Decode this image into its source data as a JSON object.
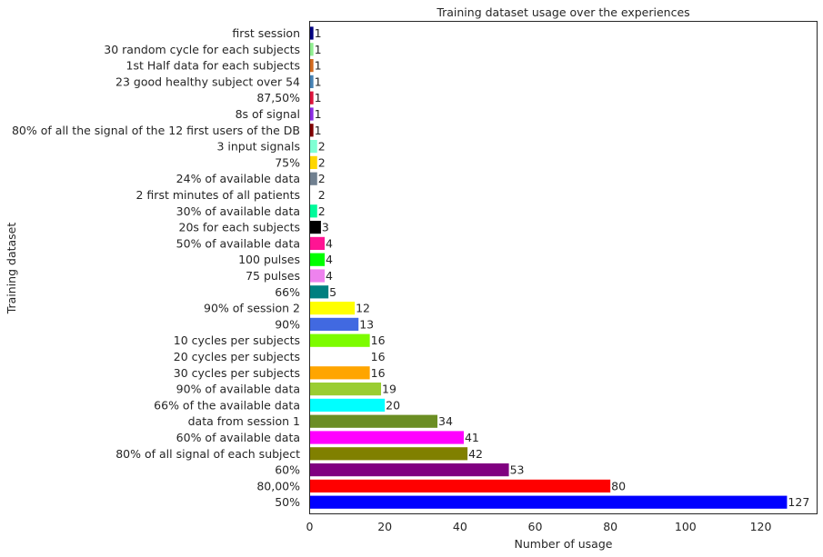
{
  "chart_data": {
    "type": "bar",
    "orientation": "horizontal",
    "title": "Training dataset usage over the experiences",
    "xlabel": "Number of usage",
    "ylabel": "Training dataset",
    "xlim": [
      0,
      135
    ],
    "xticks": [
      0,
      20,
      40,
      60,
      80,
      100,
      120
    ],
    "grid": false,
    "categories": [
      "first session",
      "30 random cycle for each subjects",
      "1st Half data for each subjects",
      "23 good healthy subject over 54",
      "87,50%",
      "8s of signal",
      "80% of all the signal of the 12 first users of the DB",
      "3 input signals",
      "75%",
      "24% of available data",
      "2 first minutes of all patients",
      "30% of available data",
      "20s for each subjects",
      "50% of available data",
      "100 pulses",
      "75 pulses",
      "66%",
      "90% of session 2",
      "90%",
      "10 cycles per subjects",
      "20 cycles per subjects",
      "30 cycles per subjects",
      "90% of available data",
      "66% of the available data",
      "data from session 1",
      "60% of available data",
      "80% of all signal of each subject",
      "60%",
      "80,00%",
      "50%"
    ],
    "values": [
      1,
      1,
      1,
      1,
      1,
      1,
      1,
      2,
      2,
      2,
      2,
      2,
      3,
      4,
      4,
      4,
      5,
      12,
      13,
      16,
      16,
      16,
      19,
      20,
      34,
      41,
      42,
      53,
      80,
      127
    ],
    "colors": [
      "#000080",
      "#90ee90",
      "#d2691e",
      "#4682b4",
      "#dc143c",
      "#8a2be2",
      "#800000",
      "#7fffd4",
      "#ffd700",
      "#708090",
      "#ffffff",
      "#00fa9a",
      "#000000",
      "#ff1493",
      "#00ff00",
      "#ee82ee",
      "#008080",
      "#ffff00",
      "#4169e1",
      "#7cfc00",
      "#ffffff",
      "#ffa500",
      "#9acd32",
      "#00ffff",
      "#6b8e23",
      "#ff00ff",
      "#808000",
      "#800080",
      "#ff0000",
      "#0000ff"
    ]
  }
}
